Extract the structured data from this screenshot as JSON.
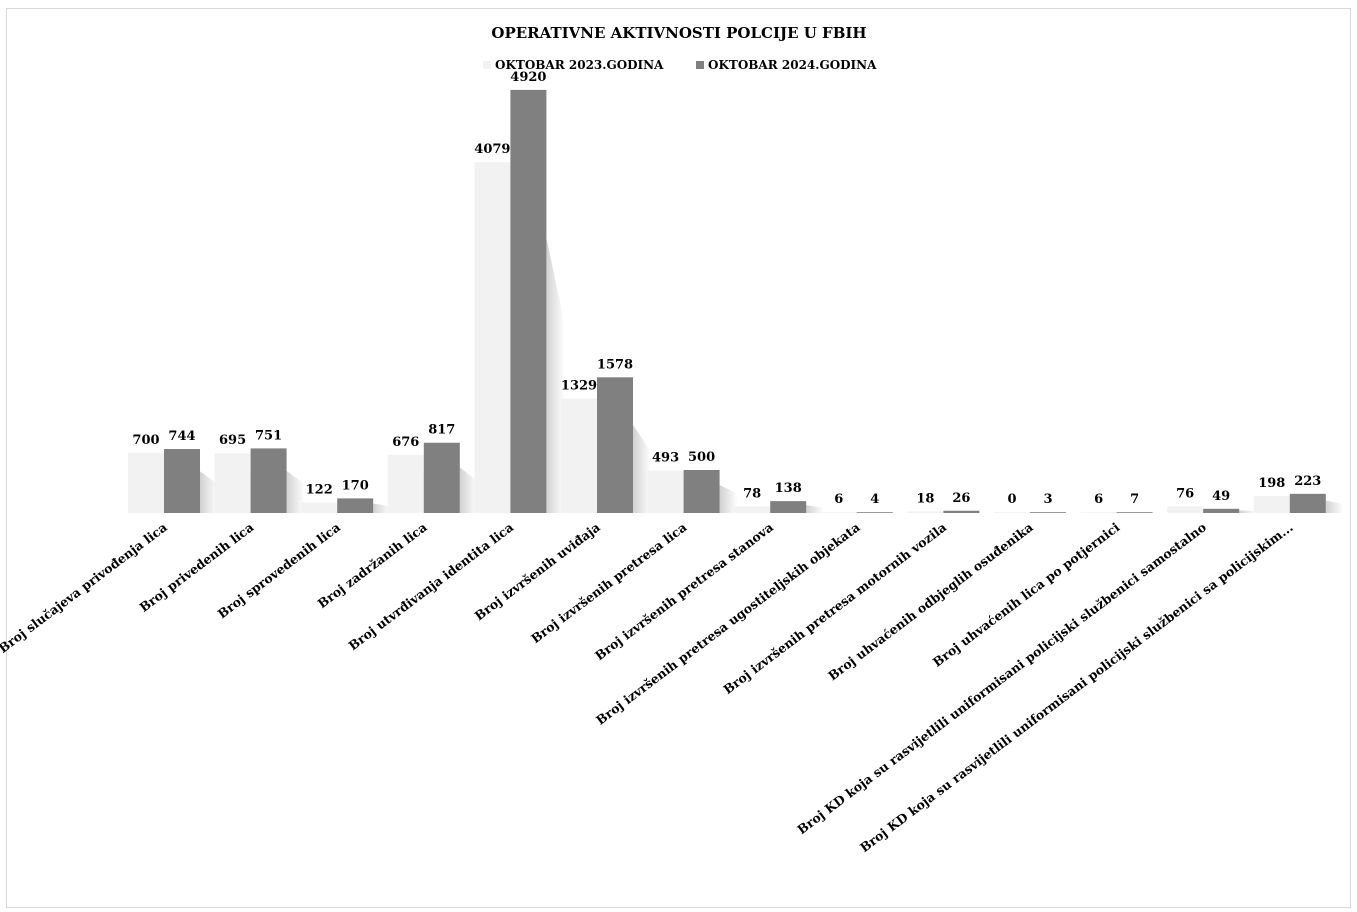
{
  "chart_data": {
    "type": "bar",
    "title": "OPERATIVNE AKTIVNOSTI  POLCIJE U FBIH",
    "legend_position": "top",
    "grid": false,
    "ylim": [
      0,
      5500
    ],
    "categories": [
      "Broj slučajeva privođenja lica",
      "Broj privedenih lica",
      "Broj sprovedenih lica",
      "Broj zadržanih lica",
      "Broj utvrđivanja identita lica",
      "Broj izvršenih uviđaja",
      "Broj izvršenih pretresa lica",
      "Broj izvršenih pretresa stanova",
      "Broj izvršenih pretresa ugostiteljskih objekata",
      "Broj izvršenih pretresa motornih vozila",
      "Broj uhvaćenih odbjeglih osuđenika",
      "Broj uhvaćenih lica po potjernici",
      "Broj KD koja su rasvijetlili uniformisani policijski službenici  samostalno",
      "Broj KD koja su rasvijetlili uniformisani policijski službenici sa policijskim..."
    ],
    "series": [
      {
        "name": "OKTOBAR 2023.GODINA",
        "color": "#f2f2f2",
        "values": [
          700,
          695,
          122,
          676,
          4079,
          1329,
          493,
          78,
          6,
          18,
          0,
          6,
          76,
          198
        ]
      },
      {
        "name": "OKTOBAR 2024.GODINA",
        "color": "#808080",
        "values": [
          744,
          751,
          170,
          817,
          4920,
          1578,
          500,
          138,
          4,
          26,
          3,
          7,
          49,
          223
        ]
      }
    ]
  }
}
